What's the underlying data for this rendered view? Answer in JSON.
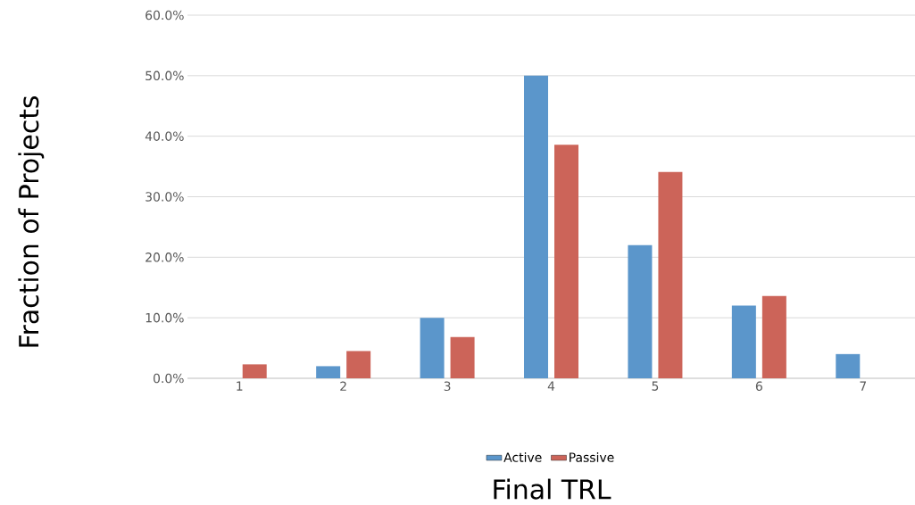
{
  "chart_data": {
    "type": "bar",
    "xlabel": "Final TRL",
    "ylabel": "Fraction of Projects",
    "categories": [
      "1",
      "2",
      "3",
      "4",
      "5",
      "6",
      "7"
    ],
    "series": [
      {
        "name": "Active",
        "color": "#5b96cb",
        "values": [
          0,
          2.0,
          10.0,
          50.0,
          22.0,
          12.0,
          4.0
        ]
      },
      {
        "name": "Passive",
        "color": "#cc6459",
        "values": [
          2.3,
          4.5,
          6.8,
          38.6,
          34.1,
          13.6,
          0
        ]
      }
    ],
    "ylim": [
      0,
      60
    ],
    "yticks": [
      {
        "value": 0,
        "label": "0.0%"
      },
      {
        "value": 10,
        "label": "10.0%"
      },
      {
        "value": 20,
        "label": "20.0%"
      },
      {
        "value": 30,
        "label": "30.0%"
      },
      {
        "value": 40,
        "label": "40.0%"
      },
      {
        "value": 50,
        "label": "50.0%"
      },
      {
        "value": 60,
        "label": "60.0%"
      }
    ],
    "grid": "y",
    "legend": "bottom"
  }
}
